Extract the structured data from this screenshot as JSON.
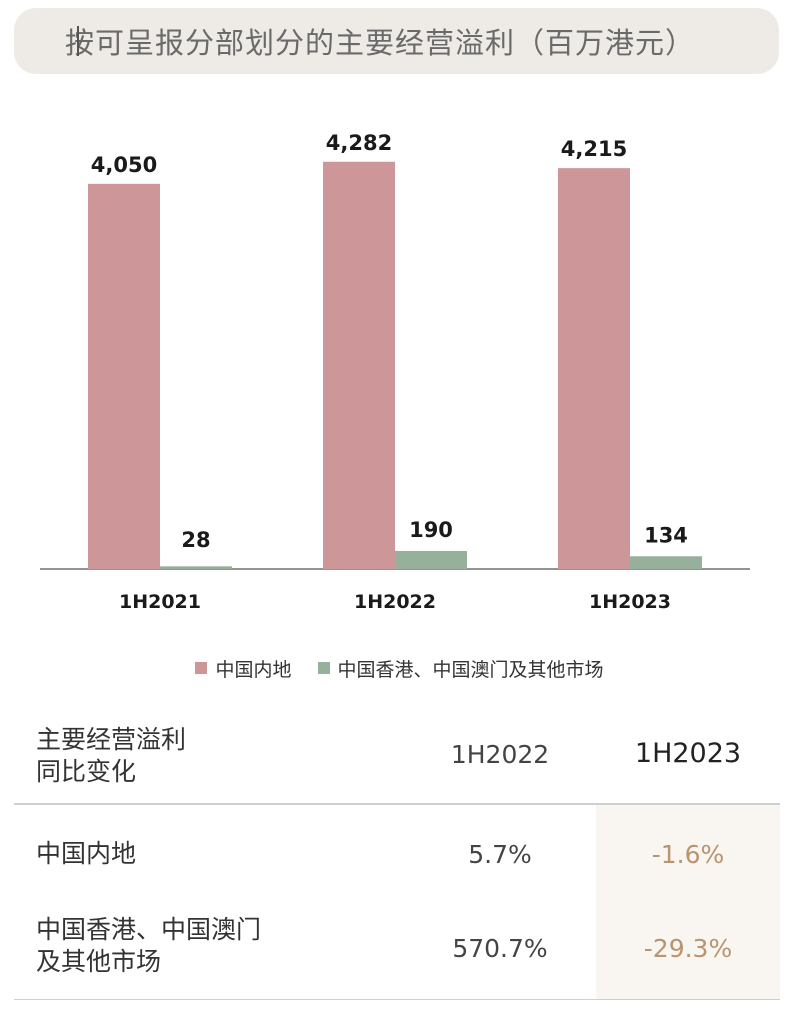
{
  "title": "按可呈报分部划分的主要经营溢利（百万港元）",
  "colors": {
    "series_a": "#cd979a",
    "series_b": "#97b09c",
    "negative_text": "#b8946f",
    "title_bg": "#eeebe6"
  },
  "chart_data": {
    "type": "bar",
    "categories": [
      "1H2021",
      "1H2022",
      "1H2023"
    ],
    "series": [
      {
        "name": "中国内地",
        "values": [
          4050,
          4282,
          4215
        ],
        "labels": [
          "4,050",
          "4,282",
          "4,215"
        ]
      },
      {
        "name": "中国香港、中国澳门及其他市场",
        "values": [
          28,
          190,
          134
        ],
        "labels": [
          "28",
          "190",
          "134"
        ]
      }
    ],
    "ylim": [
      0,
      4700
    ],
    "grid": false,
    "legend_position": "bottom-center"
  },
  "table": {
    "header": {
      "label_line1": "主要经营溢利",
      "label_line2": "同比变化",
      "col1": "1H2022",
      "col2": "1H2023"
    },
    "rows": [
      {
        "label_line1": "中国内地",
        "label_line2": "",
        "v2022": "5.7%",
        "v2023": "-1.6%"
      },
      {
        "label_line1": "中国香港、中国澳门",
        "label_line2": "及其他市场",
        "v2022": "570.7%",
        "v2023": "-29.3%"
      }
    ]
  }
}
